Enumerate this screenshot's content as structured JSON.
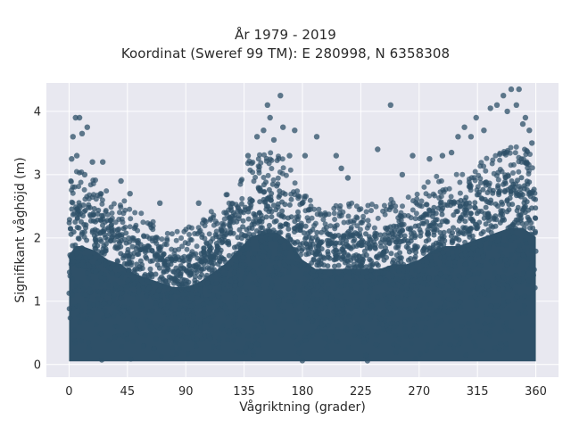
{
  "chart_data": {
    "type": "scatter",
    "title": "År 1979 - 2019",
    "subtitle": "Koordinat (Sweref 99 TM): E 280998, N 6358308",
    "xlabel": "Vågriktning (grader)",
    "ylabel": "Signifikant våghöjd (m)",
    "xlim": [
      -17.5,
      377.5
    ],
    "ylim": [
      -0.2,
      4.45
    ],
    "xticks": [
      0,
      45,
      90,
      135,
      180,
      225,
      270,
      315,
      360
    ],
    "yticks": [
      0,
      1,
      2,
      3,
      4
    ],
    "grid": true,
    "legend": "none",
    "colors": {
      "background": "#e8e8f0",
      "grid": "#ffffff",
      "points": "#2e5068"
    },
    "envelope": {
      "x": [
        0,
        5,
        10,
        20,
        30,
        40,
        50,
        60,
        70,
        80,
        90,
        100,
        110,
        120,
        130,
        140,
        150,
        160,
        170,
        180,
        190,
        200,
        210,
        220,
        230,
        240,
        250,
        260,
        270,
        280,
        290,
        300,
        310,
        320,
        330,
        340,
        350,
        360
      ],
      "dense_top": [
        2.4,
        2.6,
        2.6,
        2.5,
        2.3,
        2.2,
        2.0,
        1.9,
        1.8,
        1.7,
        1.7,
        1.8,
        2.0,
        2.2,
        2.5,
        2.8,
        2.9,
        2.9,
        2.7,
        2.3,
        2.1,
        2.1,
        2.1,
        2.1,
        2.1,
        2.1,
        2.2,
        2.2,
        2.3,
        2.5,
        2.6,
        2.6,
        2.7,
        2.8,
        2.9,
        3.0,
        3.0,
        2.8
      ],
      "bottom": 0.05
    },
    "outliers": [
      {
        "x": 3,
        "y": 3.6
      },
      {
        "x": 5,
        "y": 3.9
      },
      {
        "x": 8,
        "y": 3.9
      },
      {
        "x": 10,
        "y": 3.65
      },
      {
        "x": 14,
        "y": 3.75
      },
      {
        "x": 2,
        "y": 3.25
      },
      {
        "x": 6,
        "y": 3.3
      },
      {
        "x": 12,
        "y": 3.0
      },
      {
        "x": 18,
        "y": 3.2
      },
      {
        "x": 26,
        "y": 3.2
      },
      {
        "x": 40,
        "y": 2.9
      },
      {
        "x": 47,
        "y": 2.7
      },
      {
        "x": 70,
        "y": 2.55
      },
      {
        "x": 100,
        "y": 2.55
      },
      {
        "x": 138,
        "y": 3.3
      },
      {
        "x": 145,
        "y": 3.6
      },
      {
        "x": 150,
        "y": 3.7
      },
      {
        "x": 153,
        "y": 4.1
      },
      {
        "x": 155,
        "y": 3.9
      },
      {
        "x": 158,
        "y": 3.55
      },
      {
        "x": 163,
        "y": 4.25
      },
      {
        "x": 165,
        "y": 3.75
      },
      {
        "x": 170,
        "y": 3.3
      },
      {
        "x": 174,
        "y": 3.7
      },
      {
        "x": 182,
        "y": 3.3
      },
      {
        "x": 191,
        "y": 3.6
      },
      {
        "x": 206,
        "y": 3.3
      },
      {
        "x": 210,
        "y": 3.1
      },
      {
        "x": 215,
        "y": 2.95
      },
      {
        "x": 238,
        "y": 3.4
      },
      {
        "x": 248,
        "y": 4.1
      },
      {
        "x": 257,
        "y": 3.0
      },
      {
        "x": 265,
        "y": 3.3
      },
      {
        "x": 278,
        "y": 3.25
      },
      {
        "x": 288,
        "y": 3.3
      },
      {
        "x": 295,
        "y": 3.35
      },
      {
        "x": 300,
        "y": 3.6
      },
      {
        "x": 305,
        "y": 3.75
      },
      {
        "x": 310,
        "y": 3.6
      },
      {
        "x": 314,
        "y": 3.9
      },
      {
        "x": 320,
        "y": 3.7
      },
      {
        "x": 325,
        "y": 4.05
      },
      {
        "x": 330,
        "y": 4.1
      },
      {
        "x": 335,
        "y": 4.25
      },
      {
        "x": 338,
        "y": 4.0
      },
      {
        "x": 341,
        "y": 4.35
      },
      {
        "x": 345,
        "y": 4.1
      },
      {
        "x": 347,
        "y": 4.35
      },
      {
        "x": 350,
        "y": 3.8
      },
      {
        "x": 352,
        "y": 3.9
      },
      {
        "x": 355,
        "y": 3.7
      },
      {
        "x": 357,
        "y": 3.5
      }
    ]
  }
}
